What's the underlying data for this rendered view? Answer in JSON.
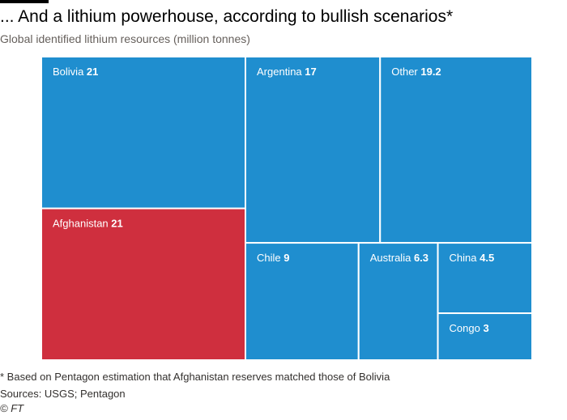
{
  "header": {
    "title": "... And a lithium powerhouse, according to bullish scenarios*",
    "subtitle": "Global identified lithium resources (million tonnes)"
  },
  "chart_data": {
    "type": "treemap",
    "title": "... And a lithium powerhouse, according to bullish scenarios*",
    "subtitle": "Global identified lithium resources (million tonnes)",
    "unit": "million tonnes",
    "items": [
      {
        "name": "Bolivia",
        "value": 21,
        "value_label": "21",
        "color": "#1f8ecf"
      },
      {
        "name": "Afghanistan",
        "value": 21,
        "value_label": "21",
        "color": "#cf2f3e"
      },
      {
        "name": "Argentina",
        "value": 17,
        "value_label": "17",
        "color": "#1f8ecf"
      },
      {
        "name": "Other",
        "value": 19.2,
        "value_label": "19.2",
        "color": "#1f8ecf"
      },
      {
        "name": "Chile",
        "value": 9,
        "value_label": "9",
        "color": "#1f8ecf"
      },
      {
        "name": "Australia",
        "value": 6.3,
        "value_label": "6.3",
        "color": "#1f8ecf"
      },
      {
        "name": "China",
        "value": 4.5,
        "value_label": "4.5",
        "color": "#1f8ecf"
      },
      {
        "name": "Congo",
        "value": 3,
        "value_label": "3",
        "color": "#1f8ecf"
      }
    ]
  },
  "footer": {
    "note": "* Based on Pentagon estimation that Afghanistan reserves matched those of Bolivia",
    "sources": "Sources: USGS; Pentagon",
    "copyright": "© FT"
  }
}
